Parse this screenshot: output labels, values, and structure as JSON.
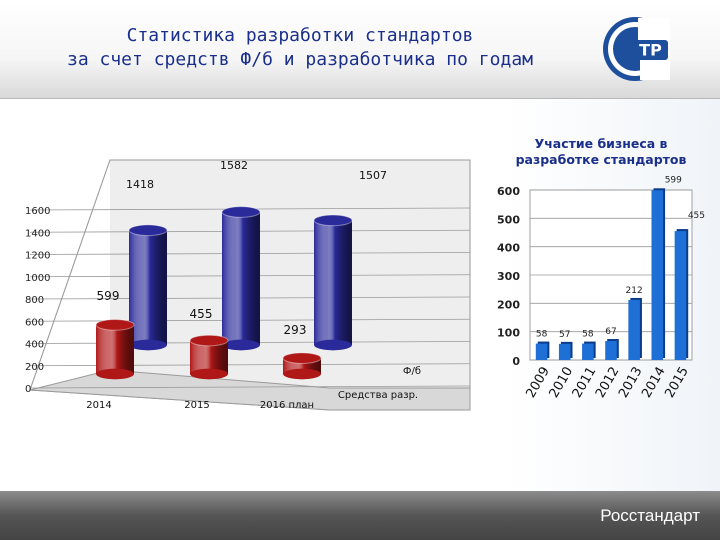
{
  "header": {
    "title_line1": "Статистика разработки стандартов",
    "title_line2": "за счет средств Ф/б и разработчика по годам",
    "logo_text": "TP",
    "logo_icon": "rst-logo-icon",
    "title_color": "#1a2f8a"
  },
  "footer": {
    "label": "Росстандарт"
  },
  "chart_data": [
    {
      "type": "bar",
      "categories": [
        "2014",
        "2015",
        "2016 план"
      ],
      "series": [
        {
          "name": "Средства разр.",
          "values": [
            1418,
            1582,
            1507
          ],
          "color": "#2a2a9a"
        },
        {
          "name": "Ф/б",
          "values": [
            599,
            455,
            293
          ],
          "color": "#b01818"
        }
      ],
      "ylim": [
        0,
        1600
      ],
      "yticks": [
        "0",
        "200",
        "400",
        "600",
        "800",
        "1000",
        "1200",
        "1400",
        "1600"
      ],
      "data_labels": {
        "back": [
          "1418",
          "1582",
          "1507"
        ],
        "front": [
          "599",
          "455",
          "293"
        ]
      },
      "grid": true
    },
    {
      "type": "bar",
      "title": "Участие бизнеса в разработке стандартов",
      "categories": [
        "2009",
        "2010",
        "2011",
        "2012",
        "2013",
        "2014",
        "2015"
      ],
      "values": [
        58,
        57,
        58,
        67,
        212,
        599,
        455
      ],
      "data_labels": [
        "58",
        "57",
        "58",
        "67",
        "212",
        "599",
        "455"
      ],
      "ylim": [
        0,
        600
      ],
      "yticks": [
        "0",
        "100",
        "200",
        "300",
        "400",
        "500",
        "600"
      ],
      "color": "#1e6fd6",
      "grid": true
    }
  ]
}
